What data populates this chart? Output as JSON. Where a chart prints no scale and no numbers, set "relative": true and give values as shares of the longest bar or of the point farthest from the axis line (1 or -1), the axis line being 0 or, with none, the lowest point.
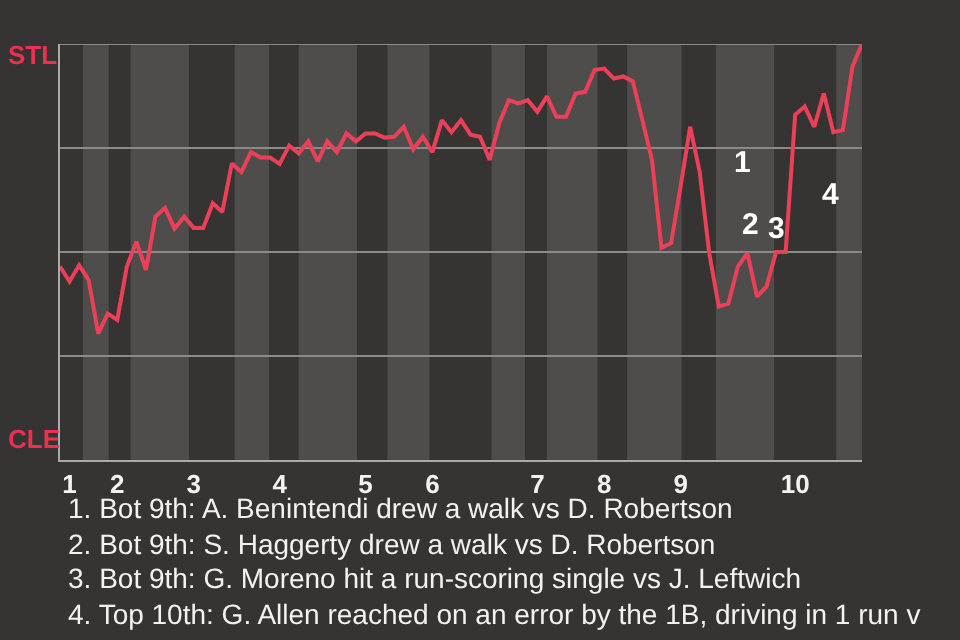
{
  "chart_data": {
    "type": "line",
    "relative": true,
    "categories": [
      null,
      "1",
      null,
      null,
      null,
      null,
      "2",
      null,
      null,
      null,
      null,
      null,
      null,
      null,
      "3",
      null,
      null,
      null,
      null,
      null,
      null,
      null,
      null,
      "4",
      null,
      null,
      null,
      null,
      null,
      null,
      null,
      null,
      "5",
      null,
      null,
      null,
      null,
      null,
      null,
      "6",
      null,
      null,
      null,
      null,
      null,
      null,
      null,
      null,
      null,
      null,
      "7",
      null,
      null,
      null,
      null,
      null,
      null,
      "8",
      null,
      null,
      null,
      null,
      null,
      null,
      null,
      "9",
      null,
      null,
      null,
      null,
      null,
      null,
      null,
      null,
      null,
      null,
      null,
      "10",
      null,
      null,
      null,
      null,
      null,
      null,
      null
    ],
    "series": [
      {
        "color": "#ec4058",
        "values": [
          0.465,
          0.429,
          0.468,
          0.433,
          0.304,
          0.352,
          0.337,
          0.465,
          0.525,
          0.457,
          0.585,
          0.606,
          0.556,
          0.585,
          0.558,
          0.558,
          0.617,
          0.596,
          0.713,
          0.692,
          0.74,
          0.727,
          0.727,
          0.712,
          0.756,
          0.737,
          0.766,
          0.718,
          0.766,
          0.74,
          0.785,
          0.766,
          0.785,
          0.785,
          0.775,
          0.777,
          0.801,
          0.747,
          0.777,
          0.74,
          0.817,
          0.788,
          0.817,
          0.782,
          0.777,
          0.721,
          0.809,
          0.865,
          0.857,
          0.865,
          0.837,
          0.874,
          0.825,
          0.825,
          0.881,
          0.885,
          0.938,
          0.941,
          0.917,
          0.922,
          0.91,
          0.817,
          0.721,
          0.51,
          0.521,
          0.657,
          0.801,
          0.692,
          0.497,
          0.369,
          0.376,
          0.465,
          0.497,
          0.393,
          0.417,
          0.5,
          0.5,
          0.83,
          0.85,
          0.801,
          0.881,
          0.788,
          0.793,
          0.946,
          1
        ]
      }
    ],
    "marker": "none",
    "line_style": "solid",
    "ref_lines": [
      {
        "axis": "y",
        "value": 0.25,
        "color": "#8a8a8a"
      },
      {
        "axis": "y",
        "value": 0.5,
        "color": "#8a8a8a"
      },
      {
        "axis": "y",
        "value": 0.75,
        "color": "#8a8a8a"
      },
      {
        "axis": "y",
        "value": 1,
        "color": "#8a8a8a"
      }
    ],
    "annotations": [
      "STL",
      "CLE",
      "1",
      "2",
      "3",
      "4",
      "1. Bot 9th: A. Benintendi drew a walk vs D. Robertson",
      "2. Bot 9th: S. Haggerty drew a walk vs D. Robertson",
      "3. Bot 9th: G. Moreno hit a run-scoring single vs J. Leftwich",
      "4. Top 10th: G. Allen reached on an error by the 1B, driving in 1 run v"
    ]
  }
}
